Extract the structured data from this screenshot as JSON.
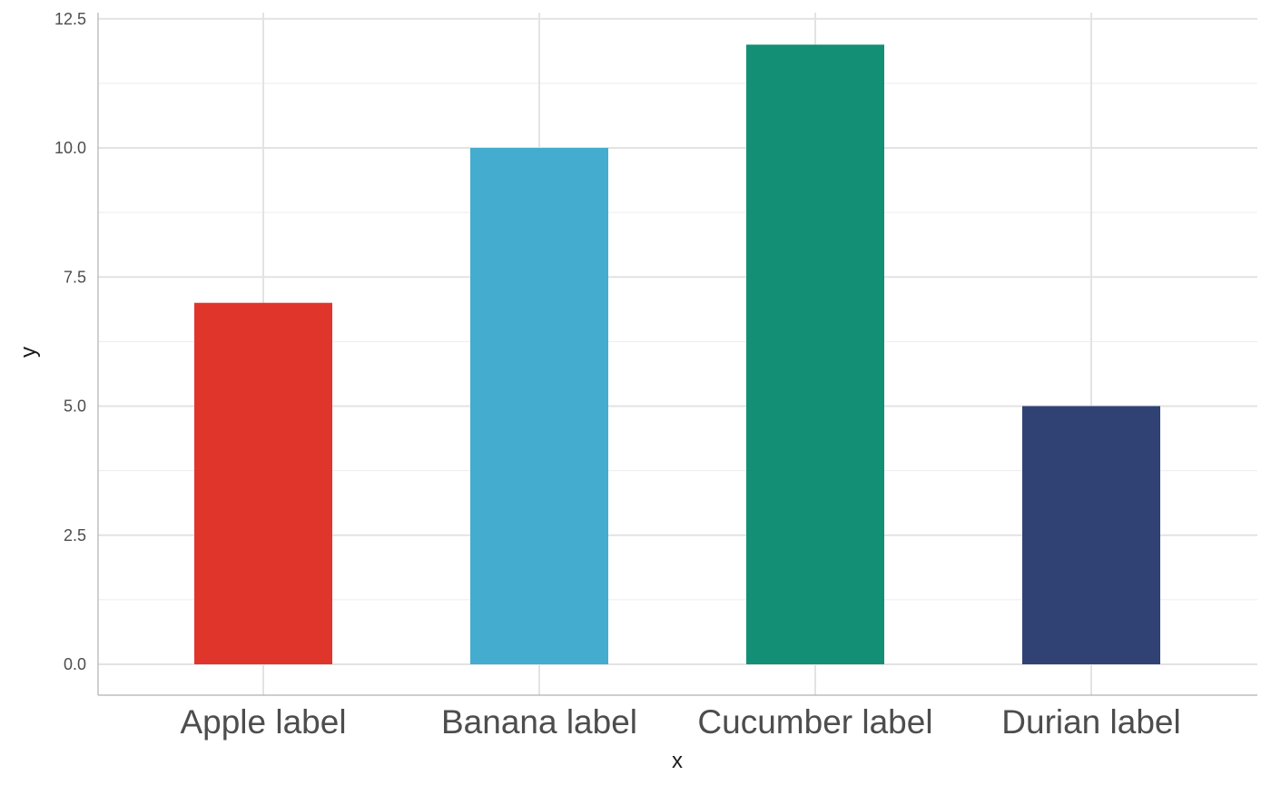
{
  "chart_data": {
    "type": "bar",
    "title": "",
    "xlabel": "x",
    "ylabel": "y",
    "categories": [
      "Apple label",
      "Banana label",
      "Cucumber label",
      "Durian label"
    ],
    "values": [
      7,
      10,
      12,
      5
    ],
    "colors": [
      "#e0352b",
      "#44acce",
      "#138f75",
      "#304174"
    ],
    "ylim": [
      -0.6,
      12.6
    ],
    "yticks": [
      0,
      2.5,
      5,
      7.5,
      10,
      12.5
    ],
    "ytick_labels": [
      "0.0",
      "2.5",
      "5.0",
      "7.5",
      "10.0",
      "12.5"
    ],
    "grid": true,
    "legend": "none"
  }
}
